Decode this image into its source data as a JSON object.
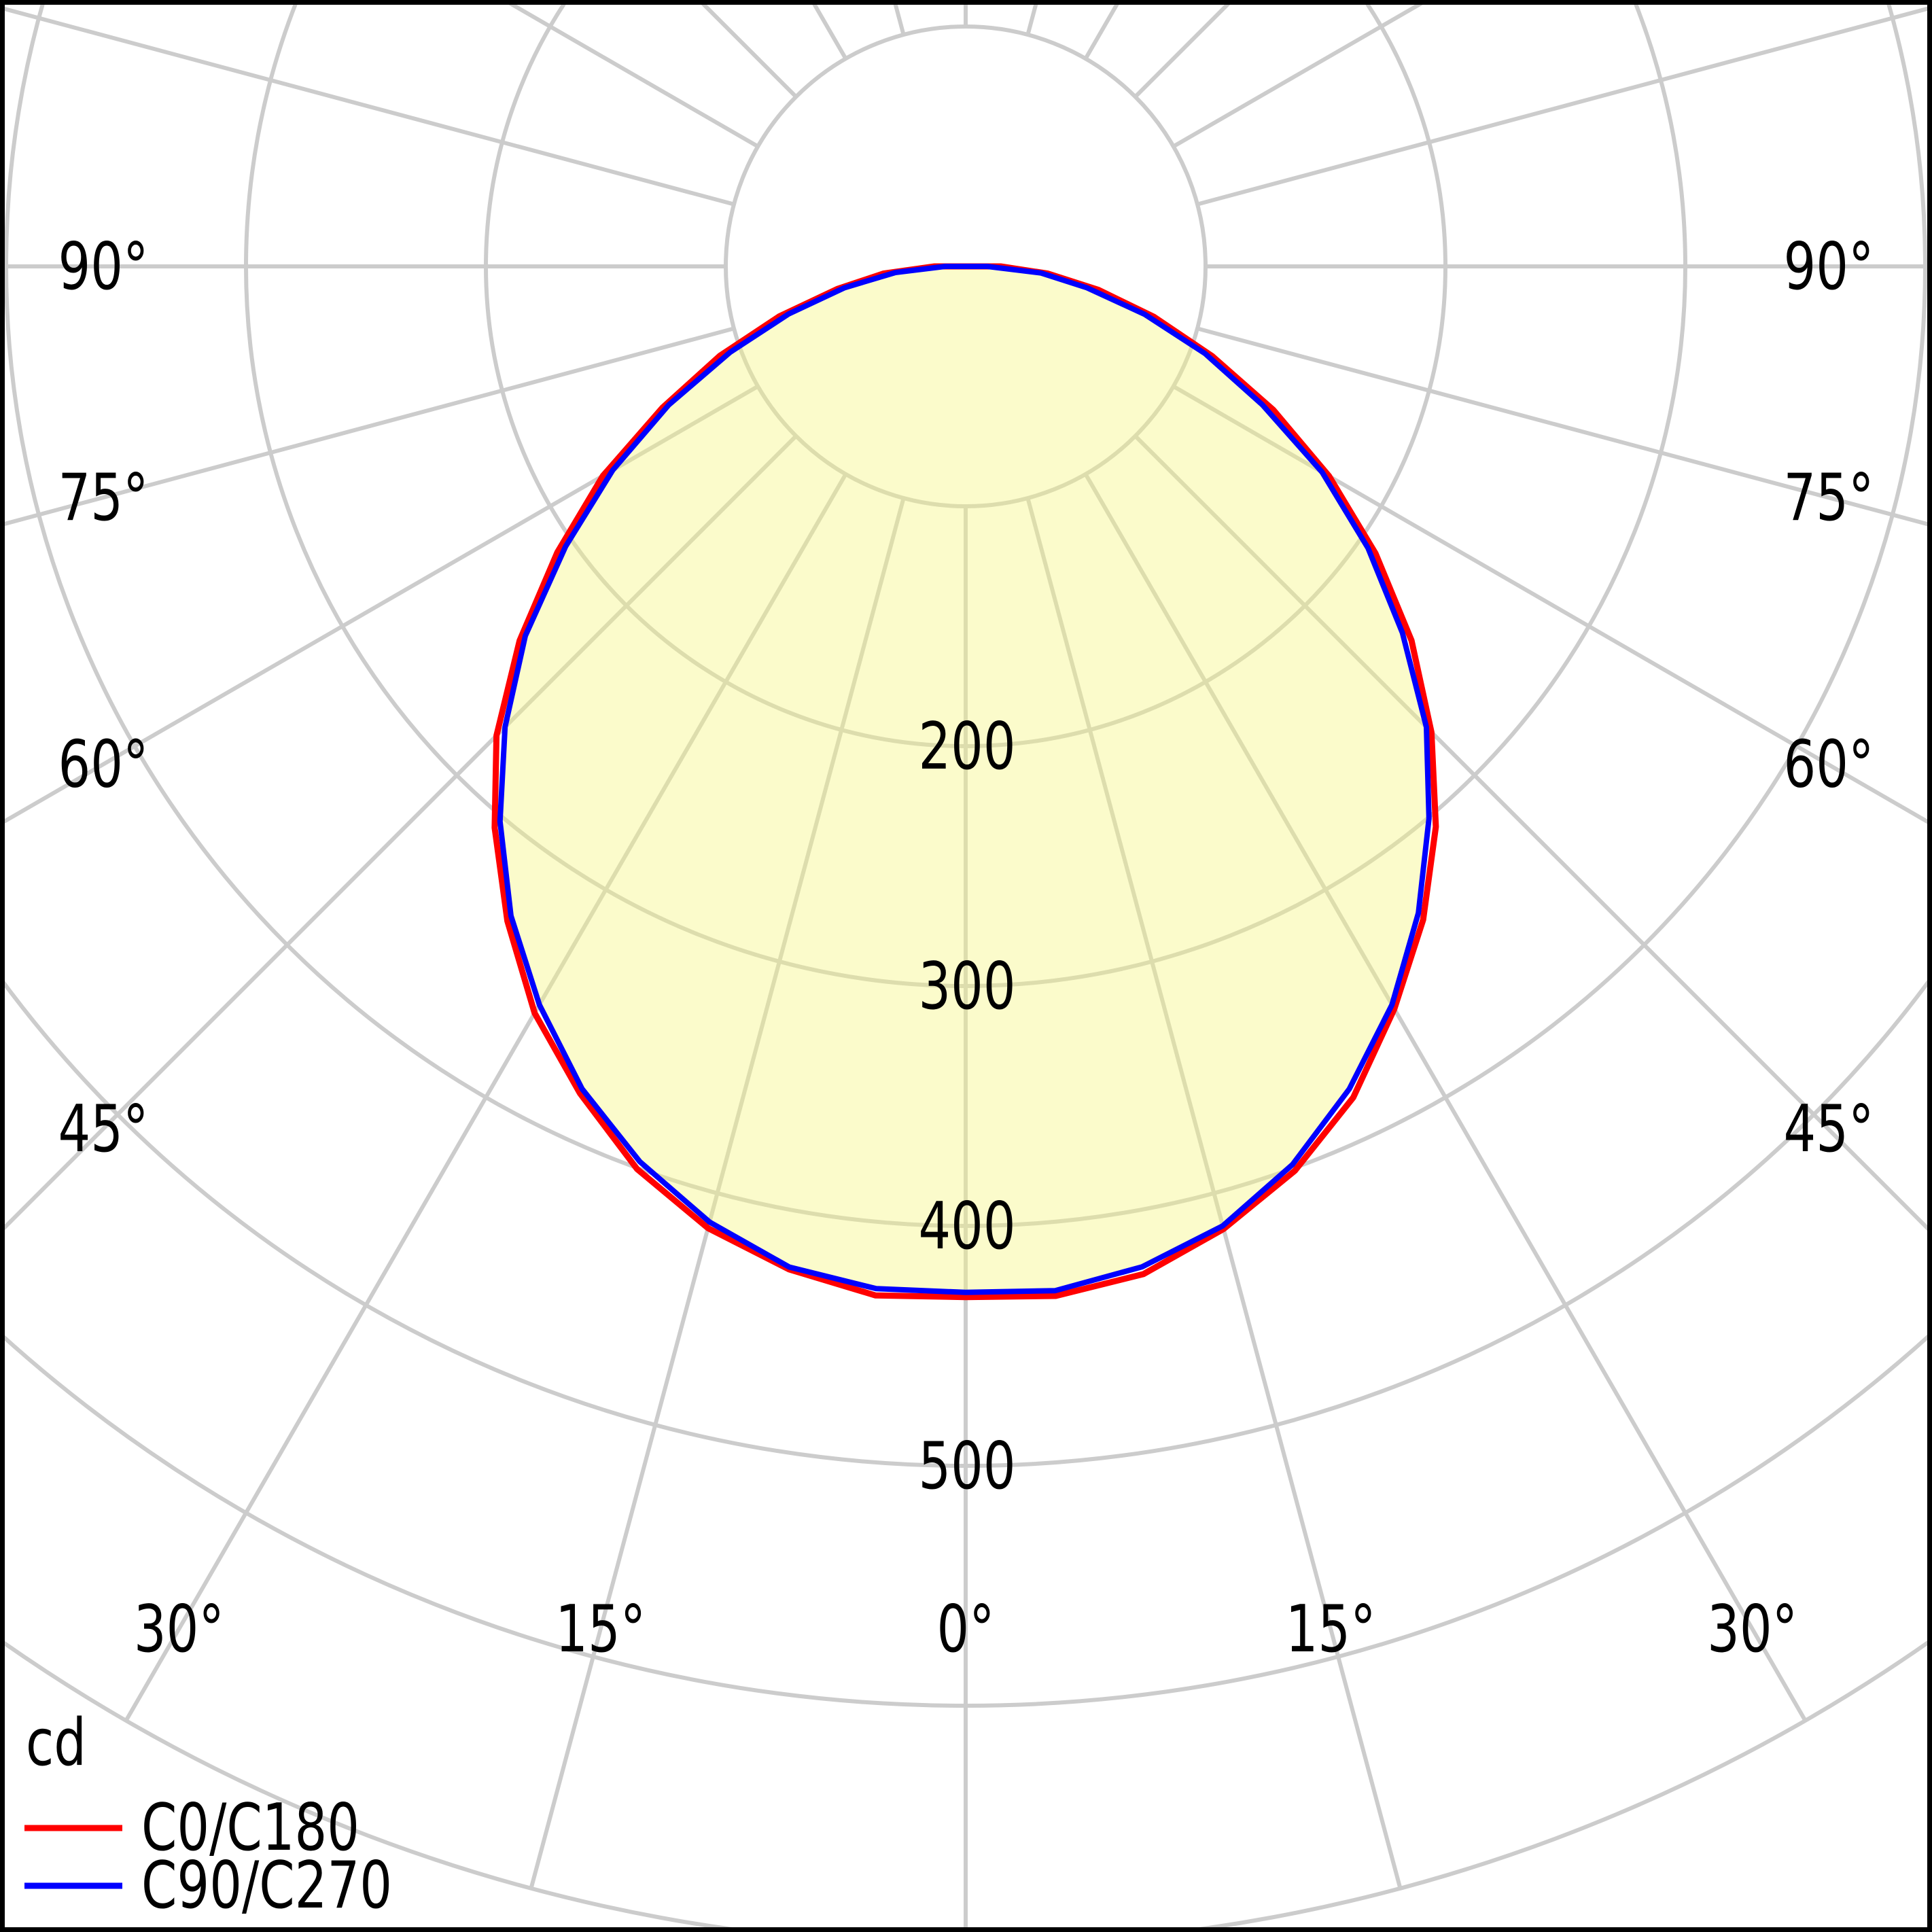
{
  "chart_data": {
    "type": "polar_intensity_curve",
    "description": "Luminous intensity distribution polar diagram (LDC)",
    "unit": "cd",
    "background": "#ffffff",
    "grid_color": "#cccccc",
    "frame_color": "#000000",
    "angle_grid_step_deg": 15,
    "radial_rings_cd": [
      100,
      200,
      300,
      400,
      500,
      600,
      700
    ],
    "radial_max_cd": 700,
    "radial_tick_labels": [
      {
        "value": 200,
        "label": "200"
      },
      {
        "value": 300,
        "label": "300"
      },
      {
        "value": 400,
        "label": "400"
      },
      {
        "value": 500,
        "label": "500"
      }
    ],
    "angle_labels_left": [
      {
        "angle": 90,
        "label": "90°"
      },
      {
        "angle": 75,
        "label": "75°"
      },
      {
        "angle": 60,
        "label": "60°"
      },
      {
        "angle": 45,
        "label": "45°"
      }
    ],
    "angle_labels_right": [
      {
        "angle": 90,
        "label": "90°"
      },
      {
        "angle": 75,
        "label": "75°"
      },
      {
        "angle": 60,
        "label": "60°"
      },
      {
        "angle": 45,
        "label": "45°"
      }
    ],
    "angle_labels_bottom": [
      {
        "angle": -30,
        "label": "30°"
      },
      {
        "angle": -15,
        "label": "15°"
      },
      {
        "angle": 0,
        "label": "0°"
      },
      {
        "angle": 15,
        "label": "15°"
      },
      {
        "angle": 30,
        "label": "30°"
      }
    ],
    "fill": {
      "color": "#f5f582",
      "opacity": 0.42
    },
    "series": [
      {
        "name": "C0/C180",
        "color": "#ff0000",
        "angles_deg": [
          -90,
          -85,
          -80,
          -75,
          -70,
          -65,
          -60,
          -55,
          -50,
          -45,
          -40,
          -35,
          -30,
          -25,
          -20,
          -15,
          -10,
          -5,
          0,
          5,
          10,
          15,
          20,
          25,
          30,
          35,
          40,
          45,
          50,
          55,
          60,
          65,
          70,
          75,
          80,
          85,
          90
        ],
        "values_cd": [
          13,
          34,
          55,
          80,
          109,
          140,
          174,
          208,
          243,
          276,
          306,
          333,
          359,
          381,
          400,
          415,
          425,
          430,
          430,
          431,
          426,
          416,
          401,
          382,
          358,
          332,
          305,
          275,
          242,
          209,
          175,
          141,
          110,
          81,
          56,
          35,
          14
        ]
      },
      {
        "name": "C90/C270",
        "color": "#0000ff",
        "angles_deg": [
          -90,
          -85,
          -80,
          -75,
          -70,
          -65,
          -60,
          -55,
          -50,
          -45,
          -40,
          -35,
          -30,
          -25,
          -20,
          -15,
          -10,
          -5,
          0,
          5,
          10,
          15,
          20,
          25,
          30,
          35,
          40,
          45,
          50,
          55,
          60,
          65,
          70,
          75,
          80,
          85,
          90
        ],
        "values_cd": [
          8,
          30,
          51,
          76,
          105,
          136,
          170,
          204,
          239,
          272,
          302,
          330,
          356,
          378,
          397,
          413,
          423,
          428,
          428,
          428,
          424,
          414,
          398,
          379,
          355,
          329,
          301,
          271,
          238,
          205,
          171,
          137,
          106,
          77,
          52,
          31,
          9
        ]
      }
    ],
    "legend": {
      "unit_label": "cd",
      "entries": [
        {
          "label": "C0/C180",
          "color": "#ff0000"
        },
        {
          "label": "C90/C270",
          "color": "#0000ff"
        }
      ]
    }
  }
}
